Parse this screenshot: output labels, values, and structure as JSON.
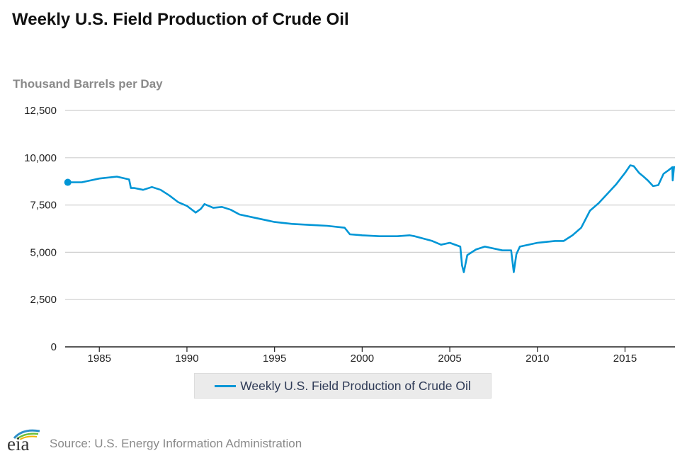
{
  "chart_data": {
    "type": "line",
    "title": "Weekly U.S. Field Production of Crude Oil",
    "ylabel": "Thousand Barrels per Day",
    "xlabel": "",
    "xlim": [
      1983.05,
      2017.85
    ],
    "ylim": [
      0,
      12500
    ],
    "x_ticks": [
      "1985",
      "1990",
      "1995",
      "2000",
      "2005",
      "2010",
      "2015"
    ],
    "y_ticks": [
      "0",
      "2,500",
      "5,000",
      "7,500",
      "10,000",
      "12,500"
    ],
    "grid": "horizontal",
    "legend_position": "bottom",
    "series": [
      {
        "name": "Weekly U.S. Field Production of Crude Oil",
        "color": "#0096d6",
        "points": [
          [
            1983.2,
            8700
          ],
          [
            1984.0,
            8700
          ],
          [
            1985.0,
            8900
          ],
          [
            1986.0,
            9000
          ],
          [
            1986.7,
            8850
          ],
          [
            1986.8,
            8400
          ],
          [
            1987.0,
            8400
          ],
          [
            1987.5,
            8300
          ],
          [
            1988.0,
            8450
          ],
          [
            1988.5,
            8300
          ],
          [
            1989.0,
            8000
          ],
          [
            1989.5,
            7650
          ],
          [
            1990.0,
            7450
          ],
          [
            1990.5,
            7100
          ],
          [
            1990.8,
            7300
          ],
          [
            1991.0,
            7550
          ],
          [
            1991.5,
            7350
          ],
          [
            1992.0,
            7400
          ],
          [
            1992.5,
            7250
          ],
          [
            1993.0,
            7000
          ],
          [
            1994.0,
            6800
          ],
          [
            1995.0,
            6600
          ],
          [
            1996.0,
            6500
          ],
          [
            1997.0,
            6450
          ],
          [
            1998.0,
            6400
          ],
          [
            1999.0,
            6300
          ],
          [
            1999.3,
            5950
          ],
          [
            2000.0,
            5900
          ],
          [
            2001.0,
            5850
          ],
          [
            2002.0,
            5850
          ],
          [
            2002.7,
            5900
          ],
          [
            2003.0,
            5850
          ],
          [
            2004.0,
            5600
          ],
          [
            2004.5,
            5400
          ],
          [
            2005.0,
            5500
          ],
          [
            2005.6,
            5300
          ],
          [
            2005.7,
            4300
          ],
          [
            2005.8,
            3950
          ],
          [
            2006.0,
            4850
          ],
          [
            2006.5,
            5150
          ],
          [
            2007.0,
            5300
          ],
          [
            2008.0,
            5100
          ],
          [
            2008.5,
            5100
          ],
          [
            2008.65,
            3950
          ],
          [
            2008.8,
            4900
          ],
          [
            2009.0,
            5300
          ],
          [
            2010.0,
            5500
          ],
          [
            2011.0,
            5600
          ],
          [
            2011.5,
            5600
          ],
          [
            2012.0,
            5900
          ],
          [
            2012.5,
            6300
          ],
          [
            2013.0,
            7200
          ],
          [
            2013.5,
            7600
          ],
          [
            2014.0,
            8100
          ],
          [
            2014.5,
            8600
          ],
          [
            2015.0,
            9200
          ],
          [
            2015.3,
            9600
          ],
          [
            2015.5,
            9550
          ],
          [
            2015.8,
            9200
          ],
          [
            2016.0,
            9050
          ],
          [
            2016.3,
            8800
          ],
          [
            2016.6,
            8500
          ],
          [
            2016.9,
            8550
          ],
          [
            2017.2,
            9150
          ],
          [
            2017.5,
            9350
          ],
          [
            2017.7,
            9500
          ],
          [
            2017.72,
            8800
          ],
          [
            2017.8,
            9550
          ]
        ]
      }
    ]
  },
  "legend": {
    "label": "Weekly U.S. Field Production of Crude Oil"
  },
  "source": {
    "text": "Source: U.S. Energy Information Administration",
    "logo_text": "eia"
  }
}
